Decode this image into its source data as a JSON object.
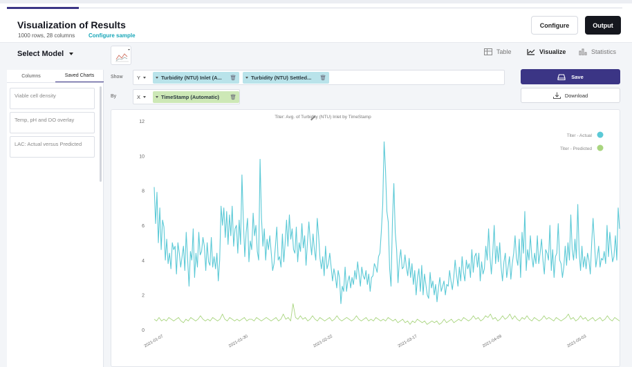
{
  "header": {
    "title": "Visualization of Results",
    "rows_info": "1000 rows, 28 columns",
    "configure_sample": "Configure sample",
    "configure_label": "Configure",
    "output_label": "Output"
  },
  "model": {
    "label": "Select Model"
  },
  "view_tabs": {
    "table": "Table",
    "visualize": "Visualize",
    "statistics": "Statistics",
    "active": "visualize"
  },
  "left_panel": {
    "tabs": [
      "Columns",
      "Saved Charts"
    ],
    "active_tab": "Saved Charts",
    "saved_charts": [
      "Viable cell density",
      "Temp, pH and DO overlay",
      "LAC: Actual versus Predicted"
    ]
  },
  "controls": {
    "show_label": "Show",
    "by_label": "By",
    "y_axis": "Y",
    "x_axis": "X",
    "y_chips": [
      "Turbidity (NTU) Inlet (A...",
      "Turbidity (NTU) Settled..."
    ],
    "x_chip": "TimeStamp (Automatic)"
  },
  "actions": {
    "save_label": "Save",
    "download_label": "Download"
  },
  "colors": {
    "accent": "#3b3585",
    "actual": "#5bc9d6",
    "predicted": "#a9d57f",
    "chip_y": "#b9e3ea",
    "chip_x": "#cde8b6"
  },
  "chart_data": {
    "type": "line",
    "title": "Titer: Avg. of Turbidity (NTU) Inlet by TimeStamp",
    "ylim": [
      0,
      12
    ],
    "y_ticks": [
      0,
      2,
      4,
      6,
      8,
      10,
      12
    ],
    "x_ticks": [
      "2021-01-07",
      "2021-01-30",
      "2021-02-22",
      "2021-03-17",
      "2021-04-09",
      "2021-05-03"
    ],
    "legend_position": "top-right",
    "grid": false,
    "series": [
      {
        "name": "Titer - Actual",
        "color": "#5bc9d6",
        "values": [
          8.2,
          6.1,
          7.9,
          5.0,
          7.0,
          4.6,
          6.3,
          5.9,
          4.0,
          5.2,
          3.8,
          4.4,
          3.5,
          5.0,
          4.6,
          4.8,
          3.2,
          5.0,
          4.4,
          3.6,
          4.2,
          4.8,
          3.4,
          5.6,
          4.0,
          2.5,
          4.5,
          4.0,
          5.8,
          3.0,
          4.4,
          3.6,
          5.6,
          4.3,
          4.5,
          5.3,
          4.8,
          3.4,
          5.0,
          3.9,
          3.7,
          5.3,
          3.6,
          4.2,
          3.5,
          4.4,
          2.8,
          4.0,
          7.1,
          6.0,
          7.0,
          5.3,
          6.8,
          4.9,
          6.6,
          5.4,
          7.1,
          4.8,
          5.8,
          6.0,
          4.4,
          6.3,
          4.9,
          8.9,
          6.2,
          4.2,
          5.6,
          6.4,
          3.9,
          5.1,
          4.6,
          6.7,
          5.4,
          6.0,
          4.5,
          4.0,
          9.8,
          6.4,
          4.8,
          5.8,
          4.0,
          5.2,
          4.6,
          5.4,
          4.4,
          3.4,
          3.8,
          4.8,
          5.9,
          4.0,
          4.2,
          3.6,
          5.5,
          3.9,
          5.0,
          6.3,
          4.8,
          6.6,
          5.2,
          5.8,
          4.6,
          4.4,
          5.9,
          3.9,
          5.0,
          4.5,
          6.1,
          4.7,
          5.4,
          3.7,
          5.0,
          6.2,
          5.1,
          4.3,
          5.5,
          4.6,
          4.0,
          6.4,
          5.4,
          4.1,
          3.5,
          4.2,
          3.1,
          4.8,
          3.5,
          3.8,
          4.4,
          3.6,
          2.8,
          3.5,
          3.1,
          2.4,
          3.4,
          3.0,
          1.5,
          2.5,
          2.2,
          3.6,
          2.2,
          2.8,
          3.1,
          2.4,
          3.0,
          2.6,
          3.4,
          2.9,
          3.9,
          3.2,
          2.5,
          3.6,
          3.1,
          2.9,
          3.4,
          2.6,
          3.2,
          2.2,
          3.0,
          3.1,
          3.8,
          3.6,
          3.3,
          4.2,
          4.4,
          5.6,
          7.2,
          10.8,
          9.2,
          6.8,
          6.2,
          3.5,
          2.5,
          6.3,
          8.4,
          5.6,
          4.6,
          2.7,
          4.0,
          4.6,
          3.5,
          3.6,
          4.3,
          3.6,
          3.1,
          4.1,
          3.0,
          3.8,
          2.6,
          3.4,
          2.0,
          3.0,
          3.5,
          2.2,
          3.7,
          2.0,
          3.2,
          2.6,
          2.0,
          1.8,
          3.3,
          2.4,
          2.8,
          2.0,
          2.6,
          1.6,
          2.4,
          3.0,
          2.2,
          2.5,
          2.8,
          2.0,
          2.6,
          2.5,
          3.4,
          2.8,
          2.3,
          3.0,
          4.0,
          3.2,
          2.5,
          3.6,
          2.8,
          4.2,
          3.3,
          2.8,
          4.0,
          3.5,
          3.8,
          3.0,
          4.6,
          3.3,
          4.2,
          4.4,
          3.6,
          4.4,
          2.8,
          3.9,
          3.2,
          3.5,
          4.8,
          4.0,
          5.8,
          4.2,
          3.2,
          4.4,
          6.0,
          3.8,
          4.8,
          3.9,
          5.0,
          3.6,
          2.8,
          3.9,
          4.4,
          3.0,
          3.6,
          4.2,
          2.9,
          3.8,
          4.4,
          5.4,
          4.1,
          3.7,
          5.2,
          3.0,
          5.6,
          4.4,
          6.8,
          3.4,
          4.6,
          4.0,
          5.4,
          4.2,
          3.6,
          4.4,
          3.8,
          5.4,
          3.8,
          4.4,
          5.2,
          4.0,
          3.2,
          4.6,
          4.4,
          4.0,
          6.0,
          3.4,
          4.6,
          3.0,
          4.2,
          4.4,
          6.1,
          4.0,
          3.8,
          3.0,
          3.6,
          4.8,
          3.7,
          5.0,
          4.0,
          6.6,
          4.6,
          4.0,
          5.2,
          4.1,
          7.2,
          4.4,
          3.4,
          4.8,
          3.6,
          4.2,
          3.5,
          4.4,
          4.0,
          3.2,
          5.0,
          6.4,
          5.0,
          3.6,
          4.2,
          4.8,
          3.6,
          4.1,
          4.0,
          4.5,
          3.8,
          6.0,
          4.2,
          5.6,
          4.7,
          3.9,
          4.2,
          5.4,
          4.0,
          7.0,
          5.8
        ]
      },
      {
        "name": "Titer - Predicted",
        "color": "#a9d57f",
        "values": [
          0.6,
          0.5,
          0.7,
          0.5,
          0.6,
          0.5,
          0.7,
          0.6,
          0.5,
          0.6,
          0.7,
          0.5,
          0.4,
          0.6,
          0.5,
          0.7,
          0.6,
          0.5,
          0.6,
          0.8,
          0.6,
          0.5,
          0.6,
          0.5,
          0.7,
          0.6,
          0.5,
          0.6,
          0.9,
          0.6,
          0.5,
          0.7,
          0.6,
          0.5,
          0.6,
          0.5,
          0.6,
          0.7,
          0.5,
          0.6,
          0.6,
          0.5,
          0.7,
          0.6,
          0.5,
          0.6,
          0.7,
          0.6,
          0.5,
          0.6,
          0.7,
          0.5,
          0.6,
          0.9,
          0.6,
          0.7,
          0.5,
          1.5,
          0.7,
          0.6,
          0.8,
          0.6,
          0.7,
          0.5,
          0.6,
          0.8,
          0.6,
          0.5,
          0.7,
          0.6,
          0.5,
          0.6,
          0.7,
          0.5,
          0.6,
          0.8,
          0.6,
          0.5,
          0.6,
          0.7,
          0.6,
          0.5,
          0.6,
          0.8,
          0.6,
          0.5,
          0.6,
          0.7,
          0.5,
          0.6,
          0.5,
          0.7,
          0.6,
          0.5,
          0.6,
          0.5,
          0.7,
          0.6,
          0.5,
          0.6,
          0.4,
          0.5,
          0.6,
          0.4,
          0.5,
          0.3,
          0.5,
          0.4,
          0.6,
          0.5,
          0.4,
          0.5,
          0.3,
          0.4,
          0.5,
          0.4,
          0.5,
          0.3,
          0.4,
          0.6,
          0.4,
          0.5,
          0.6,
          0.4,
          0.5,
          0.6,
          0.5,
          0.7,
          0.6,
          0.5,
          0.6,
          0.8,
          0.6,
          0.7,
          0.5,
          0.6,
          0.8,
          0.7,
          0.9,
          0.6,
          0.7,
          0.5,
          0.6,
          0.8,
          0.6,
          0.7,
          0.9,
          0.6,
          0.8,
          0.6,
          0.5,
          0.7,
          0.6,
          0.8,
          0.6,
          0.5,
          0.7,
          0.6,
          0.5,
          0.6,
          0.8,
          0.6,
          0.7,
          0.6,
          0.5,
          0.7,
          0.6,
          0.5,
          0.6,
          0.7,
          0.9,
          0.6,
          0.7,
          0.5,
          0.6,
          0.8,
          0.6,
          0.7,
          0.5,
          0.6,
          0.7,
          0.5,
          0.6,
          0.7,
          0.5,
          0.6,
          0.8,
          0.6,
          0.5,
          0.7,
          0.6,
          0.5
        ]
      }
    ]
  }
}
